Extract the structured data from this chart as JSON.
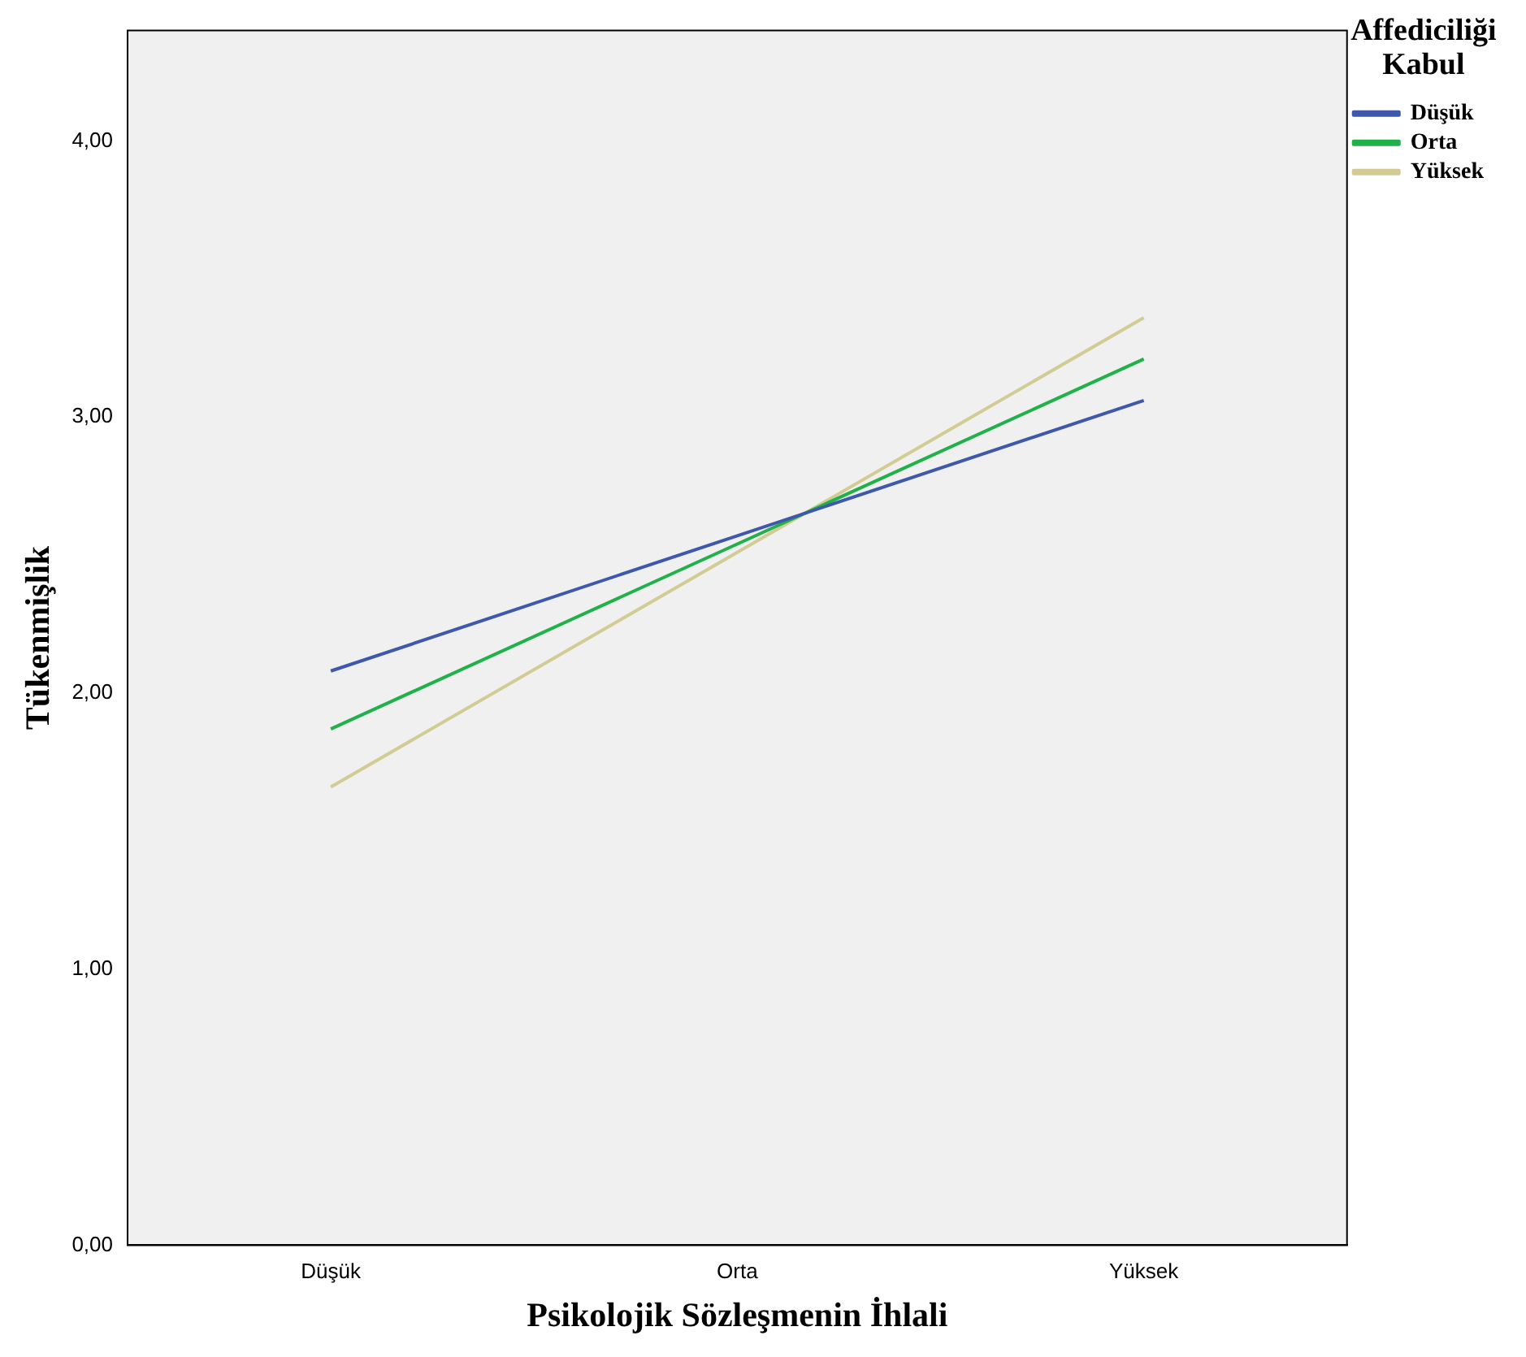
{
  "chart_data": {
    "type": "line",
    "xlabel": "Psikolojik Sözleşmenin İhlali",
    "ylabel": "Tükenmişlik",
    "legend_title": "Affediciliği Kabul",
    "legend": "top right",
    "grid": false,
    "marker": "none",
    "line_style": "solid",
    "categories": [
      "Düşük",
      "Orta",
      "Yüksek"
    ],
    "ylim": [
      0,
      4.4
    ],
    "yticks": [
      {
        "value": 0,
        "label": "0,00"
      },
      {
        "value": 1,
        "label": "1,00"
      },
      {
        "value": 2,
        "label": "2,00"
      },
      {
        "value": 3,
        "label": "3,00"
      },
      {
        "value": 4,
        "label": "4,00"
      }
    ],
    "series": [
      {
        "name": "Düşük",
        "color": "#3e58ac",
        "values": [
          2.08,
          2.57,
          3.06
        ]
      },
      {
        "name": "Orta",
        "color": "#21b14a",
        "values": [
          1.87,
          2.54,
          3.21
        ]
      },
      {
        "name": "Yüksek",
        "color": "#d2cc94",
        "values": [
          1.66,
          2.51,
          3.36
        ]
      }
    ]
  }
}
